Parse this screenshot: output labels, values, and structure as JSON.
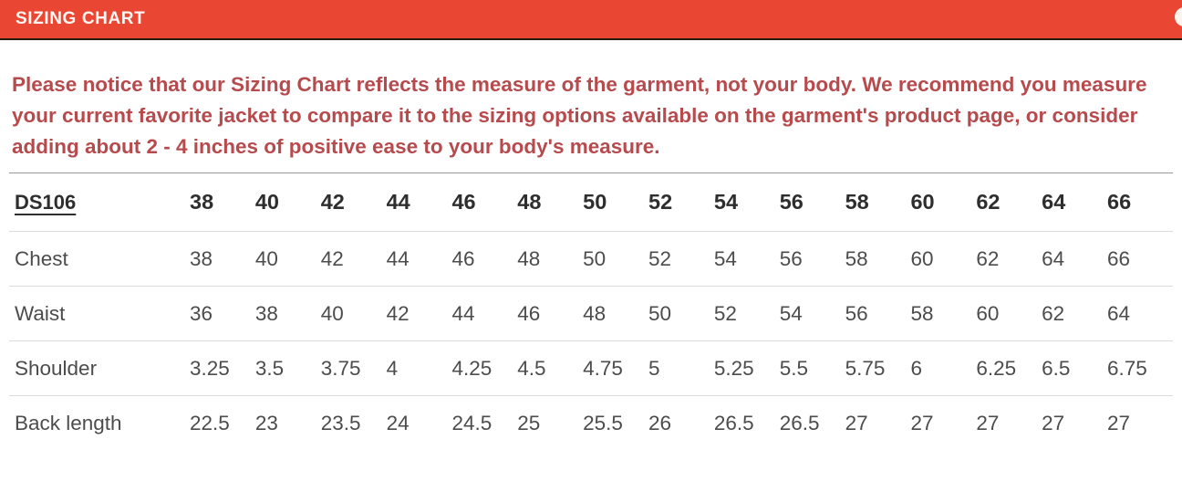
{
  "header": {
    "title": "SIZING CHART",
    "accent_color": "#e94733"
  },
  "notice": {
    "text": "Please notice that our Sizing Chart reflects the measure of the garment, not your body. We recommend you measure your current favorite jacket to compare it to the sizing options available on the garment's product page, or consider adding about 2 - 4 inches of positive ease to your body's measure.",
    "color": "#b64a4d"
  },
  "chart_data": {
    "type": "table",
    "model": "DS106",
    "columns": [
      "38",
      "40",
      "42",
      "44",
      "46",
      "48",
      "50",
      "52",
      "54",
      "56",
      "58",
      "60",
      "62",
      "64",
      "66"
    ],
    "rows": [
      {
        "label": "Chest",
        "values": [
          "38",
          "40",
          "42",
          "44",
          "46",
          "48",
          "50",
          "52",
          "54",
          "56",
          "58",
          "60",
          "62",
          "64",
          "66"
        ]
      },
      {
        "label": "Waist",
        "values": [
          "36",
          "38",
          "40",
          "42",
          "44",
          "46",
          "48",
          "50",
          "52",
          "54",
          "56",
          "58",
          "60",
          "62",
          "64"
        ]
      },
      {
        "label": "Shoulder",
        "values": [
          "3.25",
          "3.5",
          "3.75",
          "4",
          "4.25",
          "4.5",
          "4.75",
          "5",
          "5.25",
          "5.5",
          "5.75",
          "6",
          "6.25",
          "6.5",
          "6.75"
        ]
      },
      {
        "label": "Back length",
        "values": [
          "22.5",
          "23",
          "23.5",
          "24",
          "24.5",
          "25",
          "25.5",
          "26",
          "26.5",
          "26.5",
          "27",
          "27",
          "27",
          "27",
          "27"
        ]
      }
    ]
  }
}
